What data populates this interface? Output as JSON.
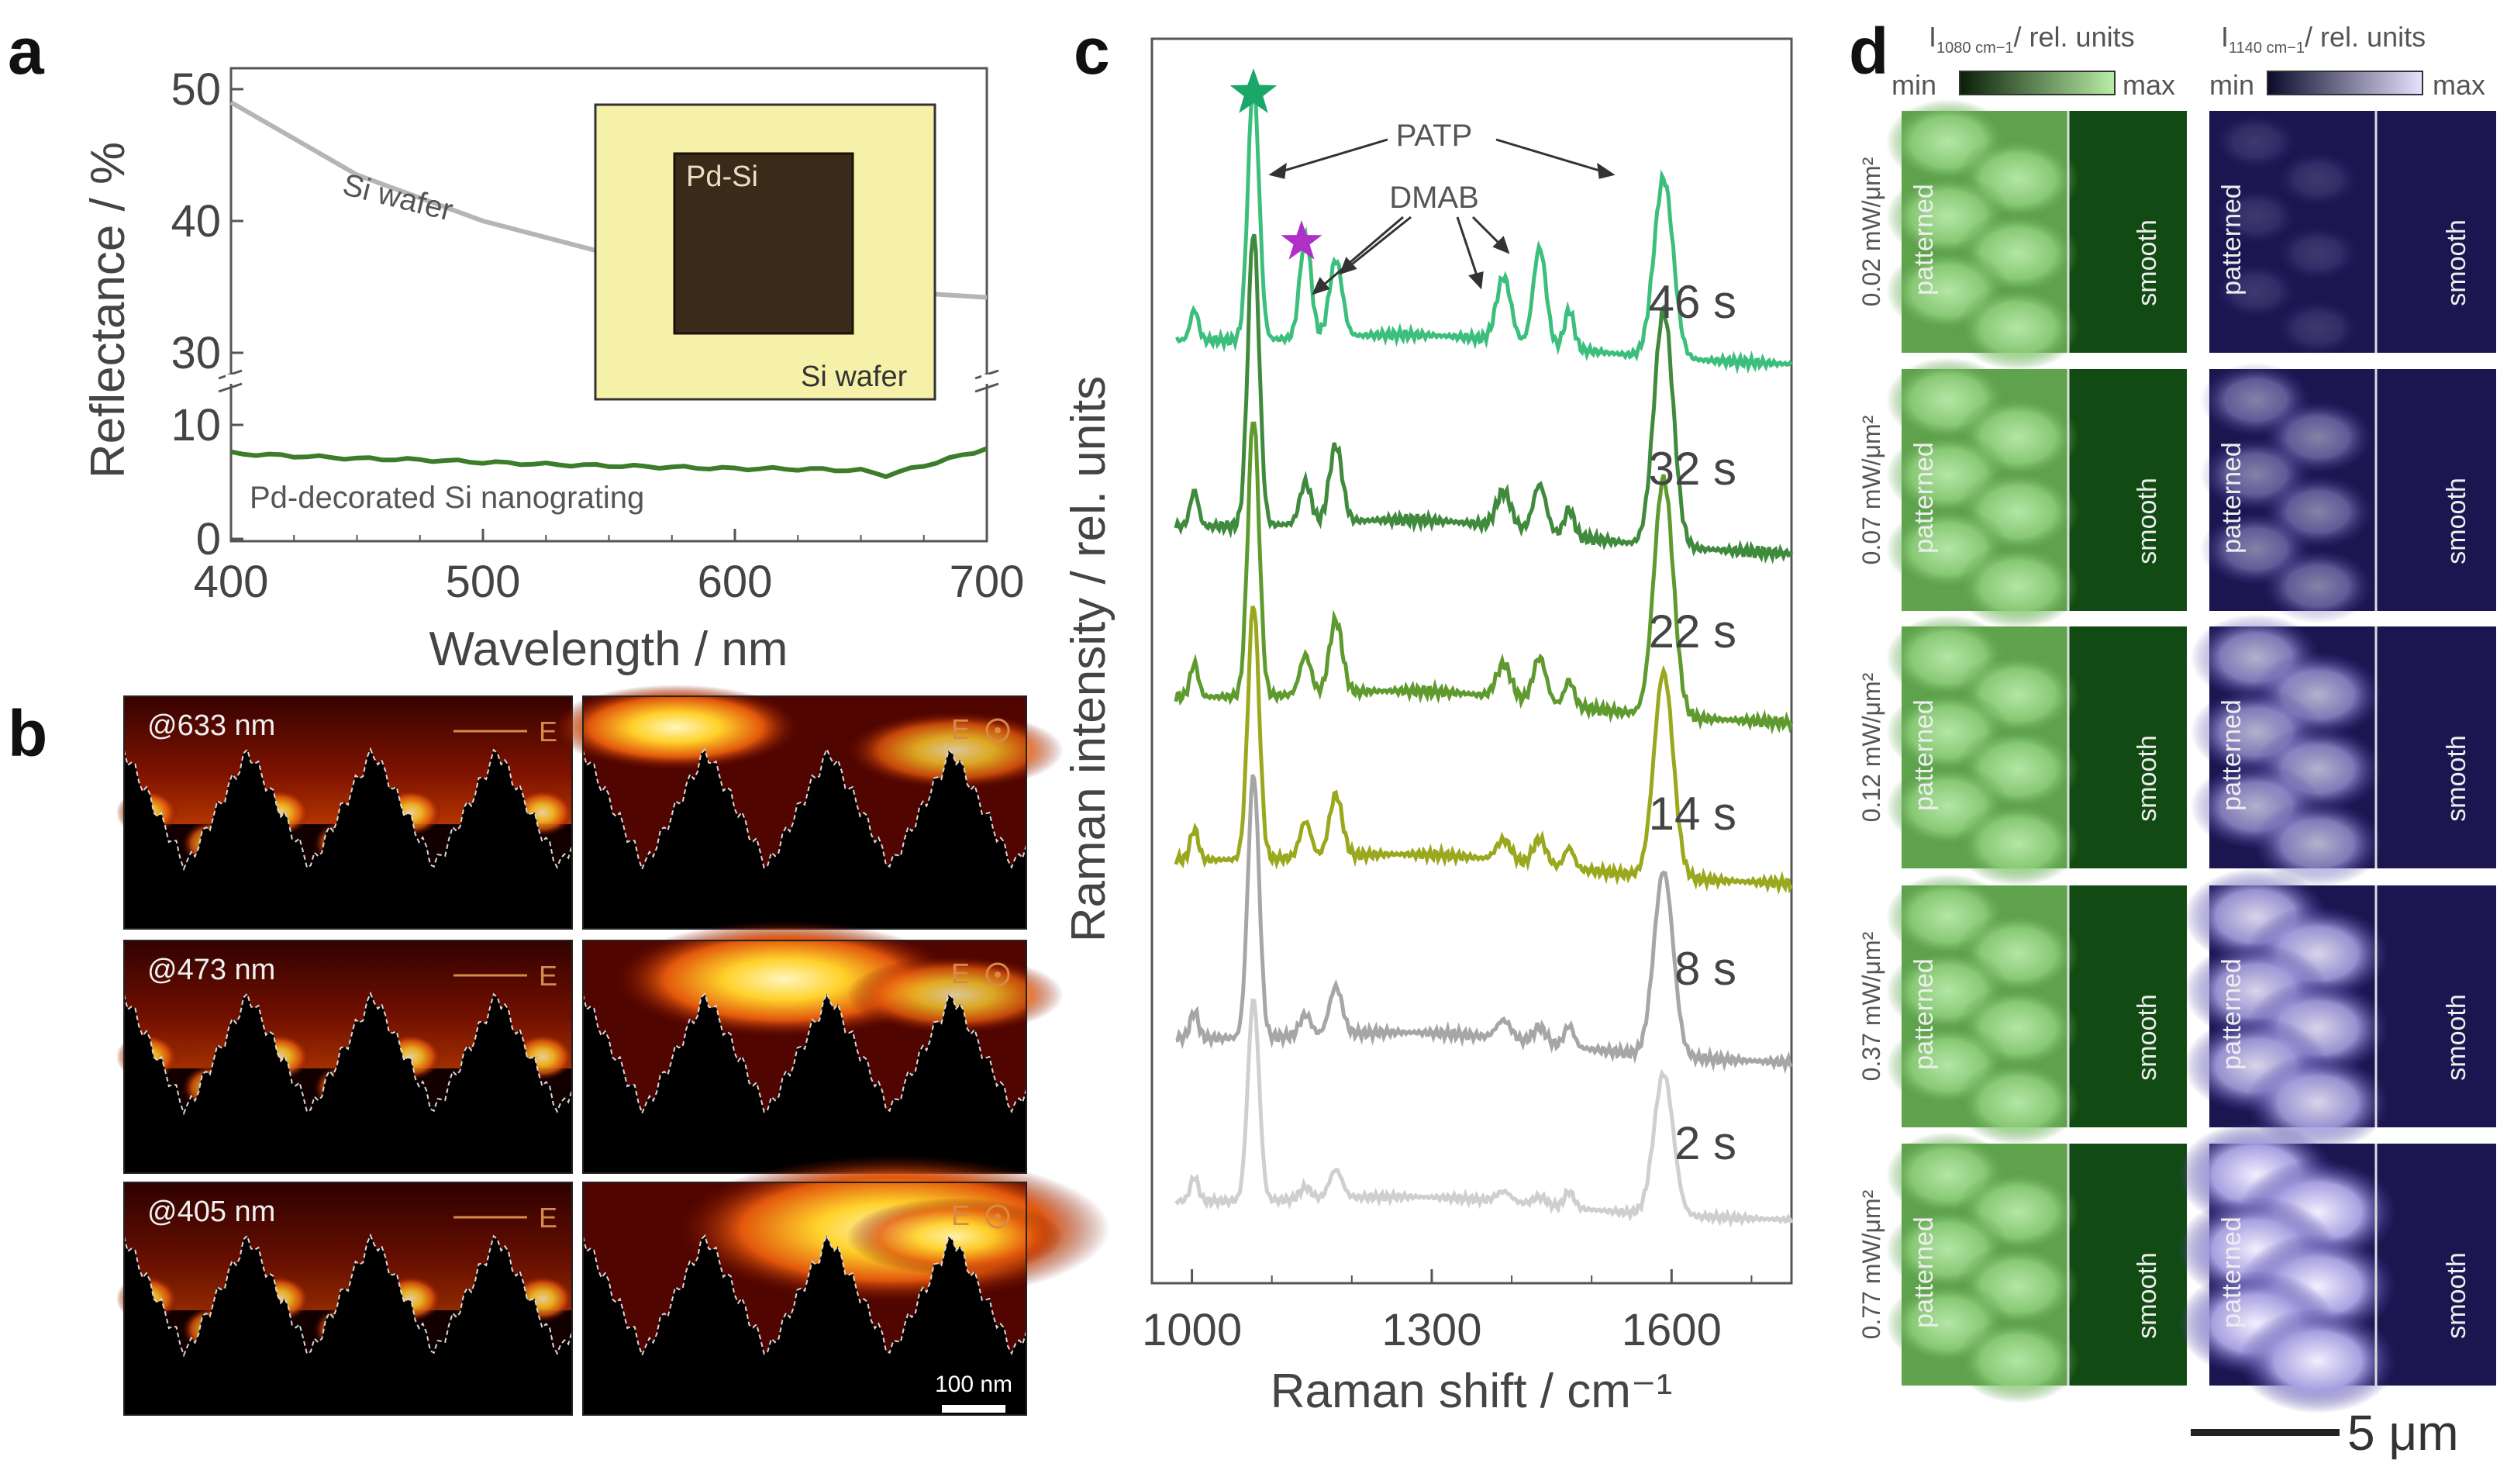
{
  "panel_labels": {
    "a": "a",
    "b": "b",
    "c": "c",
    "d": "d"
  },
  "colors": {
    "si_wafer": "#b5b5b5",
    "pd_si": "#3b7d2a",
    "dmab_star": "#b02fc6",
    "patp_star": "#1aa86a",
    "spectra": [
      "#cfcfcf",
      "#a6a6a6",
      "#9aa81e",
      "#5f9a2e",
      "#3f8a3c",
      "#3cbf7c"
    ],
    "green_map": "#114a12",
    "purple_map": "#1b1650"
  },
  "panel_a": {
    "inset": {
      "top_label": "Pd-Si",
      "bottom_label": "Si wafer"
    },
    "chart_data": {
      "type": "line",
      "xlabel": "Wavelength / nm",
      "ylabel": "Reflectance / %",
      "xlim": [
        400,
        700
      ],
      "x_ticks": [
        "400",
        "500",
        "600",
        "700"
      ],
      "y_ticks_upper": [
        "30",
        "40",
        "50"
      ],
      "y_ticks_lower": [
        "0",
        "10"
      ],
      "axis_break": true,
      "series": [
        {
          "name": "Si wafer",
          "x": [
            400,
            450,
            500,
            550,
            600,
            650,
            700
          ],
          "values": [
            49,
            43.5,
            40,
            37.5,
            35.8,
            34.8,
            34.2
          ]
        },
        {
          "name": "Pd-decorated Si nanograting",
          "x": [
            400,
            450,
            500,
            550,
            600,
            650,
            660,
            680,
            700
          ],
          "values": [
            7.6,
            7.0,
            6.7,
            6.5,
            6.1,
            6.0,
            5.6,
            6.8,
            8.0
          ]
        }
      ]
    }
  },
  "panel_b": {
    "wavelengths": [
      "@633 nm",
      "@473 nm",
      "@405 nm"
    ],
    "polarization_inplane": "E",
    "polarization_outplane": "E",
    "scalebar": "100 nm"
  },
  "panel_c": {
    "annotations": {
      "patp": "PATP",
      "dmab": "DMAB"
    },
    "chart_data": {
      "type": "line",
      "xlabel": "Raman shift / cm⁻¹",
      "ylabel": "Raman intensity / rel. units",
      "xlim": [
        950,
        1750
      ],
      "x_ticks": [
        "1000",
        "1300",
        "1600"
      ],
      "peaks_cm-1": [
        1003,
        1077,
        1142,
        1180,
        1390,
        1435,
        1472,
        1590
      ],
      "series": [
        {
          "name": "2 s"
        },
        {
          "name": "8 s"
        },
        {
          "name": "14 s"
        },
        {
          "name": "22 s"
        },
        {
          "name": "32 s"
        },
        {
          "name": "46 s"
        }
      ]
    }
  },
  "panel_d": {
    "left_header": {
      "prefix": "I",
      "sub": "1080 cm−1",
      "suffix": "/ rel. units"
    },
    "right_header": {
      "prefix": "I",
      "sub": "1140 cm−1",
      "suffix": "/ rel. units"
    },
    "colorbar_min": "min",
    "colorbar_max": "max",
    "rows": [
      {
        "power": "0.02 mW/μm²",
        "purple_level": 0.15
      },
      {
        "power": "0.07 mW/μm²",
        "purple_level": 0.45
      },
      {
        "power": "0.12 mW/μm²",
        "purple_level": 0.65
      },
      {
        "power": "0.37 mW/μm²",
        "purple_level": 0.8
      },
      {
        "power": "0.77 mW/μm²",
        "purple_level": 0.95
      }
    ],
    "region_left": "patterned",
    "region_right": "smooth",
    "scalebar": "5 μm"
  }
}
